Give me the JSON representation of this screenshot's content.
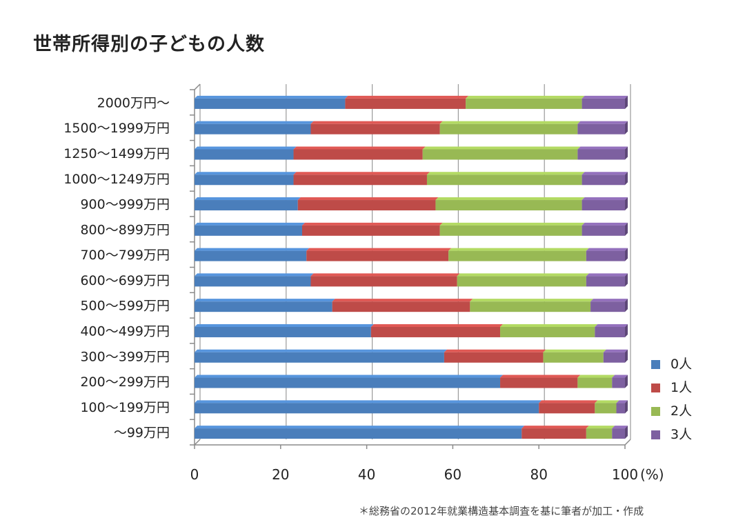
{
  "chart_data": {
    "type": "bar",
    "orientation": "horizontal",
    "stacked": true,
    "title": "世帯所得別の子どもの人数",
    "xlabel": "",
    "ylabel": "",
    "xunit": "(%)",
    "xlim": [
      0,
      100
    ],
    "xticks": [
      "0",
      "20",
      "40",
      "60",
      "80",
      "100"
    ],
    "grid": true,
    "legend_position": "right-bottom",
    "categories": [
      "2000万円〜",
      "1500〜1999万円",
      "1250〜1499万円",
      "1000〜1249万円",
      "900〜999万円",
      "800〜899万円",
      "700〜799万円",
      "600〜699万円",
      "500〜599万円",
      "400〜499万円",
      "300〜399万円",
      "200〜299万円",
      "100〜199万円",
      "〜99万円"
    ],
    "series": [
      {
        "name": "0人",
        "color": "#4a7ebb",
        "values": [
          35,
          27,
          23,
          23,
          24,
          25,
          26,
          27,
          32,
          41,
          58,
          71,
          80,
          76
        ]
      },
      {
        "name": "1人",
        "color": "#be4b48",
        "values": [
          28,
          30,
          30,
          31,
          32,
          32,
          33,
          34,
          32,
          30,
          23,
          18,
          13,
          15
        ]
      },
      {
        "name": "2人",
        "color": "#98b954",
        "values": [
          27,
          32,
          36,
          36,
          34,
          33,
          32,
          30,
          28,
          22,
          14,
          8,
          5,
          6
        ]
      },
      {
        "name": "3人",
        "color": "#7d60a0",
        "values": [
          10,
          11,
          11,
          10,
          10,
          10,
          9,
          9,
          8,
          7,
          5,
          3,
          2,
          3
        ]
      }
    ],
    "source_note": "＊総務省の2012年就業構造基本調査を基に筆者が加工・作成"
  }
}
